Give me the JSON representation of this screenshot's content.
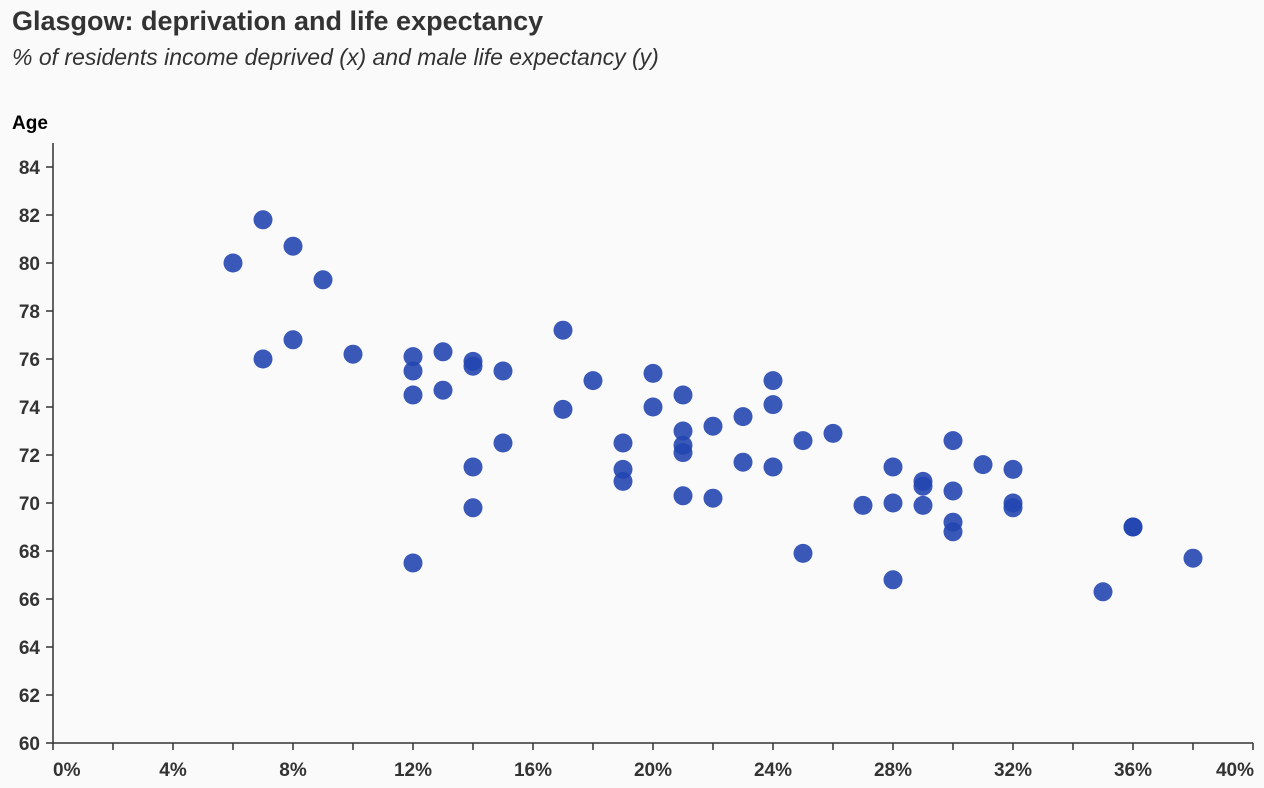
{
  "chart_data": {
    "type": "scatter",
    "title": "Glasgow: deprivation and life expectancy",
    "subtitle": "% of residents income deprived (x) and male life expectancy (y)",
    "xlabel": "",
    "ylabel": "Age",
    "xlim": [
      0,
      40
    ],
    "ylim": [
      60,
      85
    ],
    "x_ticks": [
      "0%",
      "4%",
      "8%",
      "12%",
      "16%",
      "20%",
      "24%",
      "28%",
      "32%",
      "36%",
      "40%"
    ],
    "y_ticks": [
      "60",
      "62",
      "64",
      "66",
      "68",
      "70",
      "72",
      "74",
      "76",
      "78",
      "80",
      "82",
      "84"
    ],
    "grid": false,
    "point_color": "#2346b0",
    "points": [
      {
        "x": 6,
        "y": 80.0
      },
      {
        "x": 7,
        "y": 81.8
      },
      {
        "x": 7,
        "y": 76.0
      },
      {
        "x": 8,
        "y": 80.7
      },
      {
        "x": 8,
        "y": 76.8
      },
      {
        "x": 9,
        "y": 79.3
      },
      {
        "x": 10,
        "y": 76.2
      },
      {
        "x": 12,
        "y": 76.1
      },
      {
        "x": 12,
        "y": 75.5
      },
      {
        "x": 12,
        "y": 74.5
      },
      {
        "x": 12,
        "y": 67.5
      },
      {
        "x": 13,
        "y": 76.3
      },
      {
        "x": 13,
        "y": 74.7
      },
      {
        "x": 14,
        "y": 75.9
      },
      {
        "x": 14,
        "y": 75.7
      },
      {
        "x": 14,
        "y": 71.5
      },
      {
        "x": 14,
        "y": 69.8
      },
      {
        "x": 15,
        "y": 75.5
      },
      {
        "x": 15,
        "y": 72.5
      },
      {
        "x": 17,
        "y": 77.2
      },
      {
        "x": 17,
        "y": 73.9
      },
      {
        "x": 18,
        "y": 75.1
      },
      {
        "x": 19,
        "y": 72.5
      },
      {
        "x": 19,
        "y": 71.4
      },
      {
        "x": 19,
        "y": 70.9
      },
      {
        "x": 20,
        "y": 75.4
      },
      {
        "x": 20,
        "y": 74.0
      },
      {
        "x": 21,
        "y": 74.5
      },
      {
        "x": 21,
        "y": 73.0
      },
      {
        "x": 21,
        "y": 72.4
      },
      {
        "x": 21,
        "y": 72.1
      },
      {
        "x": 21,
        "y": 70.3
      },
      {
        "x": 22,
        "y": 73.2
      },
      {
        "x": 22,
        "y": 70.2
      },
      {
        "x": 23,
        "y": 73.6
      },
      {
        "x": 23,
        "y": 71.7
      },
      {
        "x": 24,
        "y": 75.1
      },
      {
        "x": 24,
        "y": 74.1
      },
      {
        "x": 24,
        "y": 71.5
      },
      {
        "x": 25,
        "y": 72.6
      },
      {
        "x": 25,
        "y": 67.9
      },
      {
        "x": 26,
        "y": 72.9
      },
      {
        "x": 27,
        "y": 69.9
      },
      {
        "x": 28,
        "y": 71.5
      },
      {
        "x": 28,
        "y": 70.0
      },
      {
        "x": 28,
        "y": 66.8
      },
      {
        "x": 29,
        "y": 70.9
      },
      {
        "x": 29,
        "y": 70.7
      },
      {
        "x": 29,
        "y": 69.9
      },
      {
        "x": 30,
        "y": 72.6
      },
      {
        "x": 30,
        "y": 70.5
      },
      {
        "x": 30,
        "y": 69.2
      },
      {
        "x": 30,
        "y": 68.8
      },
      {
        "x": 31,
        "y": 71.6
      },
      {
        "x": 32,
        "y": 71.4
      },
      {
        "x": 32,
        "y": 70.0
      },
      {
        "x": 32,
        "y": 69.8
      },
      {
        "x": 35,
        "y": 66.3
      },
      {
        "x": 36,
        "y": 69.0
      },
      {
        "x": 36,
        "y": 69.0
      },
      {
        "x": 38,
        "y": 67.7
      }
    ]
  }
}
